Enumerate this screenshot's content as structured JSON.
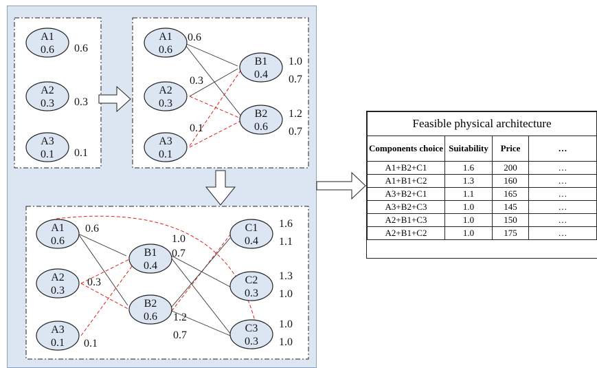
{
  "stage1": {
    "nodes": [
      {
        "name": "A1",
        "val": "0.6",
        "side": "0.6"
      },
      {
        "name": "A2",
        "val": "0.3",
        "side": "0.3"
      },
      {
        "name": "A3",
        "val": "0.1",
        "side": "0.1"
      }
    ]
  },
  "stage2": {
    "a_nodes": [
      {
        "name": "A1",
        "val": "0.6",
        "side": "0.6"
      },
      {
        "name": "A2",
        "val": "0.3",
        "side": "0.3"
      },
      {
        "name": "A3",
        "val": "0.1",
        "side": "0.1"
      }
    ],
    "b_nodes": [
      {
        "name": "B1",
        "val": "0.4",
        "side1": "1.0",
        "side2": "0.7"
      },
      {
        "name": "B2",
        "val": "0.6",
        "side1": "1.2",
        "side2": "0.7"
      }
    ]
  },
  "stage3": {
    "a_nodes": [
      {
        "name": "A1",
        "val": "0.6",
        "side": "0.6"
      },
      {
        "name": "A2",
        "val": "0.3",
        "side": "0.3"
      },
      {
        "name": "A3",
        "val": "0.1",
        "side": "0.1"
      }
    ],
    "b_nodes": [
      {
        "name": "B1",
        "val": "0.4",
        "side1": "1.0",
        "side2": "0.7"
      },
      {
        "name": "B2",
        "val": "0.6",
        "side1": "1.2",
        "side2": "0.7"
      }
    ],
    "c_nodes": [
      {
        "name": "C1",
        "val": "0.4",
        "side1": "1.6",
        "side2": "1.1"
      },
      {
        "name": "C2",
        "val": "0.3",
        "side1": "1.3",
        "side2": "1.0"
      },
      {
        "name": "C3",
        "val": "0.3",
        "side1": "1.0",
        "side2": "1.0"
      }
    ]
  },
  "table": {
    "title": "Feasible physical architecture",
    "headers": [
      "Components choice",
      "Suitability",
      "Price",
      "…"
    ],
    "rows": [
      [
        "A1+B2+C1",
        "1.6",
        "200",
        "…"
      ],
      [
        "A1+B1+C2",
        "1.3",
        "160",
        "…"
      ],
      [
        "A3+B2+C1",
        "1.1",
        "165",
        "…"
      ],
      [
        "A3+B2+C3",
        "1.0",
        "145",
        "…"
      ],
      [
        "A2+B1+C3",
        "1.0",
        "150",
        "…"
      ],
      [
        "A2+B1+C2",
        "1.0",
        "175",
        "…"
      ]
    ]
  },
  "colors": {
    "panel": "#dce6f2",
    "node_fill": "#dce6f2",
    "red_edge": "#e0201c"
  }
}
